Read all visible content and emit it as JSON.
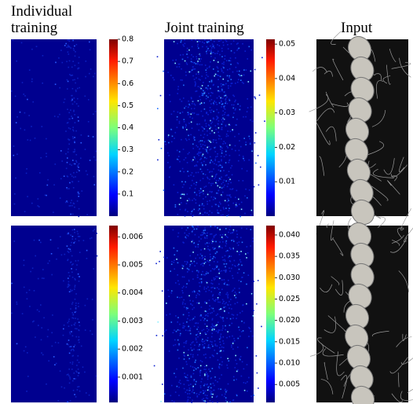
{
  "columns": [
    {
      "title": "Individual training"
    },
    {
      "title": "Joint training"
    },
    {
      "title": "Input"
    }
  ],
  "colorbars": [
    {
      "ylim": [
        0,
        0.8
      ],
      "yticks": [
        0.1,
        0.2,
        0.3,
        0.4,
        0.5,
        0.6,
        0.7,
        0.8
      ]
    },
    {
      "ylim": [
        0,
        0.0514
      ],
      "yticks": [
        0.01,
        0.02,
        0.03,
        0.04,
        0.05
      ]
    },
    {
      "ylim": [
        0.0001,
        0.0064
      ],
      "yticks": [
        0.001,
        0.002,
        0.003,
        0.004,
        0.005,
        0.006
      ]
    },
    {
      "ylim": [
        0.0008,
        0.0422
      ],
      "yticks": [
        0.005,
        {
          "value": 0.01,
          "label": "0.010"
        },
        0.015,
        {
          "value": 0.02,
          "label": "0.020"
        },
        0.025,
        {
          "value": 0.03,
          "label": "0.030"
        },
        0.035,
        {
          "value": 0.04,
          "label": "0.040"
        }
      ]
    }
  ]
}
